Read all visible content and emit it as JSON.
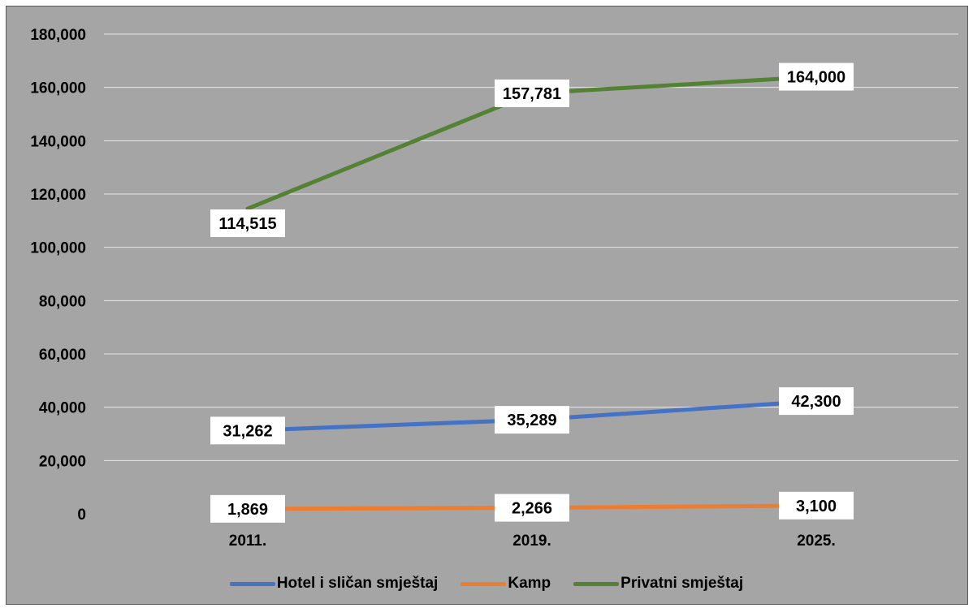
{
  "chart_data": {
    "type": "line",
    "title": "",
    "xlabel": "",
    "ylabel": "",
    "categories": [
      "2011.",
      "2019.",
      "2025."
    ],
    "ylim": [
      0,
      180000
    ],
    "yticks": [
      0,
      20000,
      40000,
      60000,
      80000,
      100000,
      120000,
      140000,
      160000,
      180000
    ],
    "ytick_labels": [
      "0",
      "20,000",
      "40,000",
      "60,000",
      "80,000",
      "100,000",
      "120,000",
      "140,000",
      "160,000",
      "180,000"
    ],
    "grid": true,
    "legend_position": "bottom",
    "series": [
      {
        "name": "Hotel i sličan smještaj",
        "color": "#4472c4",
        "values": [
          31262,
          35289,
          42300
        ],
        "labels": [
          "31,262",
          "35,289",
          "42,300"
        ]
      },
      {
        "name": "Kamp",
        "color": "#ed7d31",
        "values": [
          1869,
          2266,
          3100
        ],
        "labels": [
          "1,869",
          "2,266",
          "3,100"
        ]
      },
      {
        "name": "Privatni smještaj",
        "color": "#548235",
        "values": [
          114515,
          157781,
          164000
        ],
        "labels": [
          "114,515",
          "157,781",
          "164,000"
        ]
      }
    ]
  }
}
